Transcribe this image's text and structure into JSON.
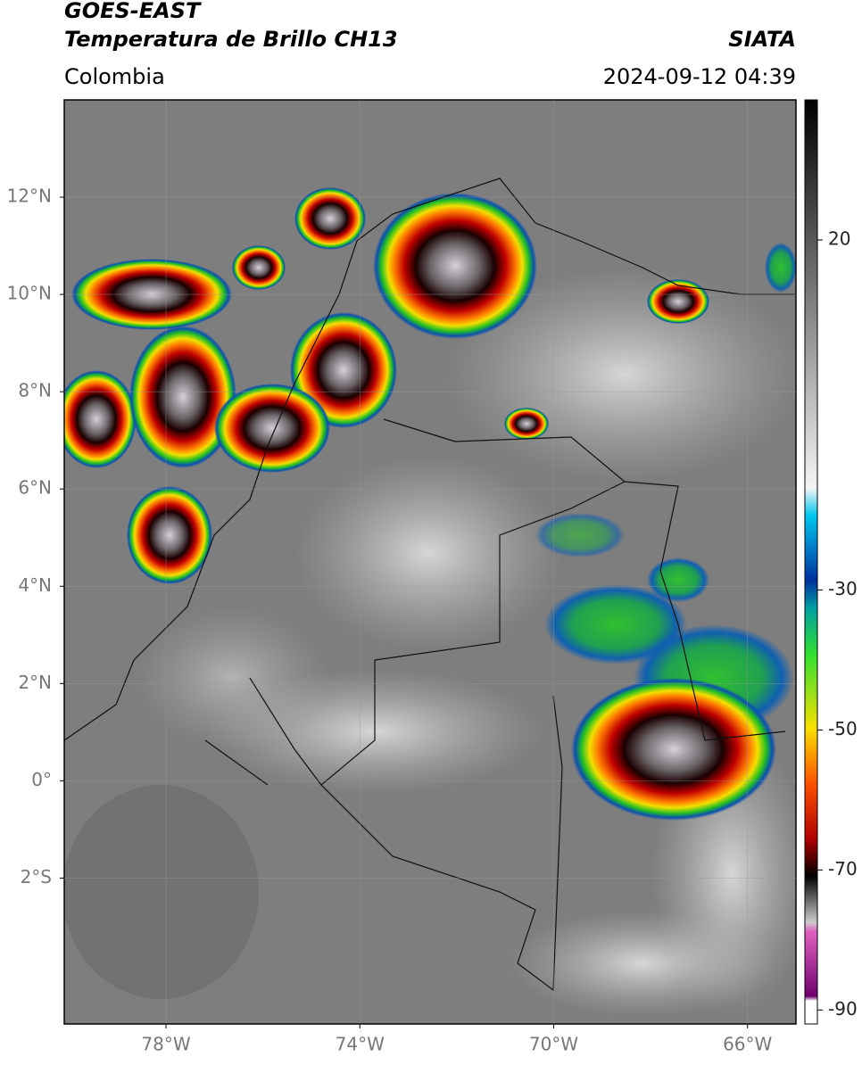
{
  "header": {
    "satellite": "GOES-EAST",
    "product": "Temperatura de Brillo CH13",
    "source": "SIATA",
    "region": "Colombia",
    "datetime": "2024-09-12 04:39"
  },
  "map": {
    "lonlim": [
      -80.1,
      -65
    ],
    "latlim": [
      -5,
      14
    ],
    "grid": true,
    "lat_ticks": [
      {
        "value": 12,
        "label": "12°N"
      },
      {
        "value": 10,
        "label": "10°N"
      },
      {
        "value": 8,
        "label": "8°N"
      },
      {
        "value": 6,
        "label": "6°N"
      },
      {
        "value": 4,
        "label": "4°N"
      },
      {
        "value": 2,
        "label": "2°N"
      },
      {
        "value": 0,
        "label": "0°"
      },
      {
        "value": -2,
        "label": "2°S"
      }
    ],
    "lon_ticks": [
      {
        "value": -78,
        "label": "78°W"
      },
      {
        "value": -74,
        "label": "74°W"
      },
      {
        "value": -70,
        "label": "70°W"
      },
      {
        "value": -66,
        "label": "66°W"
      }
    ]
  },
  "colorbar": {
    "lim": [
      -92,
      40
    ],
    "ticks": [
      20,
      -30,
      -50,
      -70,
      -90
    ]
  }
}
